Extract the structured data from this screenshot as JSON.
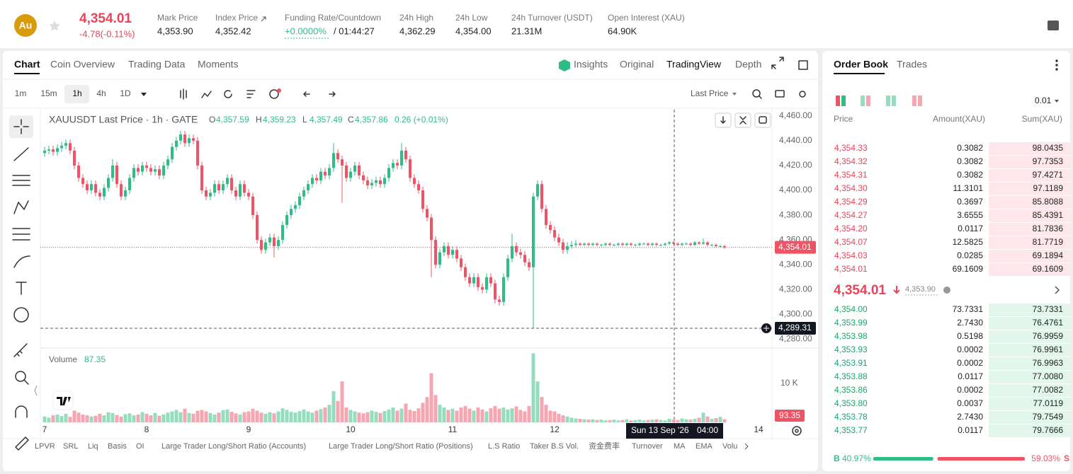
{
  "header": {
    "logo": "Au",
    "price": "4,354.01",
    "change": "-4.78(-0.11%)",
    "stats": [
      {
        "label": "Mark Price",
        "value": "4,353.90"
      },
      {
        "label": "Index Price",
        "value": "4,352.42"
      },
      {
        "label": "Funding Rate/Countdown",
        "value": "+0.0000%",
        "countdown": "/ 01:44:27"
      },
      {
        "label": "24h High",
        "value": "4,362.29"
      },
      {
        "label": "24h Low",
        "value": "4,354.00"
      },
      {
        "label": "24h Turnover (USDT)",
        "value": "21.31M"
      },
      {
        "label": "Open Interest (XAU)",
        "value": "64.90K"
      }
    ]
  },
  "tabs": [
    "Chart",
    "Coin Overview",
    "Trading Data",
    "Moments"
  ],
  "view_tabs": [
    "Insights",
    "Original",
    "TradingView",
    "Depth"
  ],
  "intervals": [
    "1m",
    "15m",
    "1h",
    "4h",
    "1D"
  ],
  "price_source": "Last Price",
  "indicators": [
    "LPVR",
    "SRL",
    "Liq",
    "Basis",
    "OI",
    "Large Trader Long/Short Ratio (Accounts)",
    "Large Trader Long/Short Ratio (Positions)",
    "L.S Ratio",
    "Taker B.S Vol.",
    "资金费率",
    "Turnover",
    "MA",
    "EMA",
    "Volu"
  ],
  "chart_data": {
    "type": "candlestick",
    "title": "XAUUSDT Last Price · 1h · GATE",
    "ohlc": [
      {
        "key": "O",
        "value": "4,357.59"
      },
      {
        "key": "H",
        "value": "4,359.23"
      },
      {
        "key": "L",
        "value": "4,357.49"
      },
      {
        "key": "C",
        "value": "4,357.86"
      }
    ],
    "change": "0.26 (+0.01%)",
    "up_color": "#2ebd85",
    "down_color": "#ef5466",
    "volume_up_color": "#96dcbf",
    "volume_down_color": "#f5a6b1",
    "xlim": [
      0,
      171
    ],
    "xticks": [
      {
        "value": 0,
        "label": "7"
      },
      {
        "value": 24,
        "label": "8"
      },
      {
        "value": 48,
        "label": "9"
      },
      {
        "value": 72,
        "label": "10"
      },
      {
        "value": 96,
        "label": "11"
      },
      {
        "value": 120,
        "label": "12"
      },
      {
        "value": 168,
        "label": "14"
      }
    ],
    "ylim": [
      4274,
      4465
    ],
    "yticks": [
      {
        "value": 4460,
        "label": "4,460.00"
      },
      {
        "value": 4440,
        "label": "4,440.00"
      },
      {
        "value": 4420,
        "label": "4,420.00"
      },
      {
        "value": 4400,
        "label": "4,400.00"
      },
      {
        "value": 4380,
        "label": "4,380.00"
      },
      {
        "value": 4360,
        "label": "4,360.00"
      },
      {
        "value": 4340,
        "label": "4,340.00"
      },
      {
        "value": 4320,
        "label": "4,320.00"
      },
      {
        "value": 4300,
        "label": "4,300.00"
      },
      {
        "value": 4280,
        "label": "4,280.00"
      }
    ],
    "price_tag": "4,354.01",
    "crosshair_price": "4,289.31",
    "crosshair_date": "Sun 13 Sep '26",
    "crosshair_time": "04:00",
    "volume_title": "Volume",
    "volume_value": "87.35",
    "volume_tag": "93.35",
    "vlim": [
      0,
      18500
    ],
    "vticks": [
      {
        "value": 10000,
        "label": "10 K"
      }
    ],
    "candles": [
      [
        4430,
        4435,
        4427,
        4432
      ],
      [
        4432,
        4436,
        4429,
        4433
      ],
      [
        4433,
        4436,
        4428,
        4431
      ],
      [
        4431,
        4437,
        4428,
        4434
      ],
      [
        4434,
        4439,
        4431,
        4436
      ],
      [
        4436,
        4441,
        4433,
        4438
      ],
      [
        4438,
        4441,
        4429,
        4432
      ],
      [
        4432,
        4435,
        4417,
        4420
      ],
      [
        4420,
        4423,
        4407,
        4410
      ],
      [
        4410,
        4413,
        4402,
        4405
      ],
      [
        4405,
        4408,
        4397,
        4400
      ],
      [
        4400,
        4408,
        4397,
        4405
      ],
      [
        4405,
        4408,
        4395,
        4398
      ],
      [
        4398,
        4401,
        4392,
        4395
      ],
      [
        4395,
        4405,
        4392,
        4402
      ],
      [
        4402,
        4413,
        4399,
        4410
      ],
      [
        4410,
        4425,
        4407,
        4420
      ],
      [
        4420,
        4423,
        4402,
        4405
      ],
      [
        4405,
        4408,
        4392,
        4395
      ],
      [
        4395,
        4403,
        4392,
        4400
      ],
      [
        4400,
        4413,
        4397,
        4410
      ],
      [
        4410,
        4421,
        4407,
        4418
      ],
      [
        4418,
        4421,
        4412,
        4415
      ],
      [
        4415,
        4423,
        4412,
        4420
      ],
      [
        4420,
        4423,
        4415,
        4418
      ],
      [
        4418,
        4421,
        4412,
        4415
      ],
      [
        4415,
        4420,
        4412,
        4417
      ],
      [
        4417,
        4420,
        4409,
        4412
      ],
      [
        4412,
        4423,
        4409,
        4420
      ],
      [
        4420,
        4428,
        4417,
        4425
      ],
      [
        4425,
        4438,
        4422,
        4435
      ],
      [
        4435,
        4443,
        4432,
        4440
      ],
      [
        4440,
        4448,
        4437,
        4445
      ],
      [
        4445,
        4448,
        4435,
        4438
      ],
      [
        4438,
        4445,
        4435,
        4442
      ],
      [
        4442,
        4445,
        4437,
        4440
      ],
      [
        4440,
        4443,
        4417,
        4420
      ],
      [
        4420,
        4423,
        4397,
        4400
      ],
      [
        4400,
        4403,
        4392,
        4395
      ],
      [
        4395,
        4401,
        4392,
        4398
      ],
      [
        4398,
        4408,
        4395,
        4405
      ],
      [
        4405,
        4408,
        4397,
        4400
      ],
      [
        4400,
        4408,
        4397,
        4405
      ],
      [
        4405,
        4413,
        4402,
        4410
      ],
      [
        4410,
        4413,
        4397,
        4400
      ],
      [
        4400,
        4403,
        4392,
        4395
      ],
      [
        4395,
        4408,
        4392,
        4405
      ],
      [
        4405,
        4408,
        4395,
        4398
      ],
      [
        4398,
        4401,
        4392,
        4395
      ],
      [
        4395,
        4398,
        4377,
        4380
      ],
      [
        4380,
        4383,
        4357,
        4360
      ],
      [
        4360,
        4363,
        4349,
        4352
      ],
      [
        4352,
        4361,
        4349,
        4358
      ],
      [
        4358,
        4365,
        4355,
        4362
      ],
      [
        4362,
        4365,
        4346,
        4355
      ],
      [
        4355,
        4363,
        4352,
        4360
      ],
      [
        4360,
        4375,
        4357,
        4372
      ],
      [
        4372,
        4383,
        4369,
        4380
      ],
      [
        4380,
        4388,
        4377,
        4385
      ],
      [
        4385,
        4391,
        4382,
        4388
      ],
      [
        4388,
        4398,
        4385,
        4395
      ],
      [
        4395,
        4403,
        4392,
        4400
      ],
      [
        4400,
        4408,
        4397,
        4405
      ],
      [
        4405,
        4413,
        4402,
        4410
      ],
      [
        4410,
        4413,
        4405,
        4408
      ],
      [
        4408,
        4418,
        4405,
        4415
      ],
      [
        4415,
        4418,
        4409,
        4412
      ],
      [
        4412,
        4421,
        4409,
        4418
      ],
      [
        4418,
        4438,
        4415,
        4430
      ],
      [
        4430,
        4433,
        4422,
        4425
      ],
      [
        4425,
        4428,
        4390,
        4420
      ],
      [
        4420,
        4423,
        4407,
        4410
      ],
      [
        4410,
        4418,
        4407,
        4415
      ],
      [
        4415,
        4423,
        4412,
        4420
      ],
      [
        4420,
        4423,
        4409,
        4412
      ],
      [
        4412,
        4415,
        4405,
        4408
      ],
      [
        4408,
        4411,
        4401,
        4404
      ],
      [
        4404,
        4409,
        4401,
        4406
      ],
      [
        4406,
        4411,
        4403,
        4408
      ],
      [
        4408,
        4411,
        4402,
        4405
      ],
      [
        4405,
        4413,
        4402,
        4410
      ],
      [
        4410,
        4421,
        4407,
        4418
      ],
      [
        4418,
        4425,
        4415,
        4422
      ],
      [
        4422,
        4425,
        4417,
        4420
      ],
      [
        4420,
        4438,
        4417,
        4432
      ],
      [
        4432,
        4435,
        4422,
        4425
      ],
      [
        4425,
        4428,
        4407,
        4410
      ],
      [
        4410,
        4413,
        4402,
        4405
      ],
      [
        4405,
        4408,
        4397,
        4400
      ],
      [
        4400,
        4403,
        4382,
        4385
      ],
      [
        4385,
        4388,
        4375,
        4378
      ],
      [
        4378,
        4381,
        4330,
        4360
      ],
      [
        4360,
        4363,
        4337,
        4340
      ],
      [
        4340,
        4353,
        4337,
        4350
      ],
      [
        4350,
        4358,
        4347,
        4355
      ],
      [
        4355,
        4358,
        4345,
        4348
      ],
      [
        4348,
        4355,
        4345,
        4352
      ],
      [
        4352,
        4355,
        4342,
        4345
      ],
      [
        4345,
        4348,
        4335,
        4338
      ],
      [
        4338,
        4341,
        4327,
        4330
      ],
      [
        4330,
        4333,
        4322,
        4325
      ],
      [
        4325,
        4333,
        4322,
        4330
      ],
      [
        4330,
        4333,
        4319,
        4322
      ],
      [
        4322,
        4325,
        4317,
        4320
      ],
      [
        4320,
        4333,
        4317,
        4330
      ],
      [
        4330,
        4333,
        4322,
        4325
      ],
      [
        4325,
        4328,
        4309,
        4312
      ],
      [
        4312,
        4315,
        4307,
        4310
      ],
      [
        4310,
        4333,
        4307,
        4330
      ],
      [
        4330,
        4348,
        4327,
        4345
      ],
      [
        4345,
        4365,
        4342,
        4355
      ],
      [
        4355,
        4358,
        4347,
        4350
      ],
      [
        4350,
        4353,
        4345,
        4348
      ],
      [
        4348,
        4351,
        4339,
        4342
      ],
      [
        4342,
        4345,
        4335,
        4338
      ],
      [
        4338,
        4398,
        4289,
        4395
      ],
      [
        4395,
        4408,
        4392,
        4405
      ],
      [
        4405,
        4408,
        4382,
        4385
      ],
      [
        4385,
        4388,
        4369,
        4372
      ],
      [
        4372,
        4375,
        4365,
        4368
      ],
      [
        4368,
        4371,
        4359,
        4362
      ],
      [
        4362,
        4365,
        4355,
        4358
      ],
      [
        4358,
        4361,
        4349,
        4352
      ],
      [
        4352,
        4358,
        4349,
        4355
      ],
      [
        4355,
        4359,
        4353,
        4356
      ],
      [
        4356,
        4360,
        4354,
        4357
      ],
      [
        4357,
        4358,
        4355,
        4356
      ],
      [
        4356,
        4358,
        4355,
        4357
      ],
      [
        4357,
        4358,
        4355,
        4356
      ],
      [
        4356,
        4358,
        4355,
        4357
      ],
      [
        4357,
        4358,
        4355,
        4356
      ],
      [
        4356,
        4357,
        4355,
        4356
      ],
      [
        4356,
        4358,
        4355,
        4357
      ],
      [
        4357,
        4358,
        4355,
        4356
      ],
      [
        4356,
        4357,
        4355,
        4356
      ],
      [
        4356,
        4358,
        4355,
        4357
      ],
      [
        4357,
        4358,
        4355,
        4356
      ],
      [
        4356,
        4358,
        4355,
        4357
      ],
      [
        4357,
        4358,
        4355,
        4356
      ],
      [
        4356,
        4357,
        4355,
        4356
      ],
      [
        4356,
        4358,
        4355,
        4357
      ],
      [
        4357,
        4358,
        4356,
        4357
      ],
      [
        4357,
        4358,
        4355,
        4356
      ],
      [
        4356,
        4358,
        4355,
        4357
      ],
      [
        4357,
        4358,
        4355,
        4356
      ],
      [
        4356,
        4357,
        4355,
        4356
      ],
      [
        4356,
        4358,
        4355,
        4357
      ],
      [
        4357,
        4359,
        4356,
        4358
      ],
      [
        4358,
        4359,
        4356,
        4357
      ],
      [
        4357,
        4358,
        4355,
        4356
      ],
      [
        4356,
        4358,
        4355,
        4357
      ],
      [
        4357,
        4358,
        4356,
        4357
      ],
      [
        4357,
        4358,
        4355,
        4356
      ],
      [
        4356,
        4359,
        4355,
        4358
      ],
      [
        4358,
        4359,
        4356,
        4357
      ],
      [
        4357,
        4361,
        4356,
        4358
      ],
      [
        4358,
        4359,
        4355,
        4356
      ],
      [
        4356,
        4357,
        4355,
        4356
      ],
      [
        4356,
        4357,
        4354,
        4355
      ],
      [
        4355,
        4356,
        4354,
        4355
      ],
      [
        4355,
        4356,
        4353,
        4354.01
      ]
    ],
    "volume": [
      1500,
      1200,
      1800,
      2000,
      1600,
      2200,
      1400,
      3000,
      2500,
      2000,
      1800,
      1500,
      1700,
      2200,
      1800,
      2600,
      2400,
      1900,
      1500,
      2100,
      2300,
      1800,
      2000,
      2600,
      2200,
      1800,
      2400,
      1700,
      2000,
      2500,
      2800,
      3200,
      2600,
      3500,
      2400,
      2200,
      3000,
      3200,
      2800,
      2400,
      2000,
      2500,
      3100,
      3300,
      2700,
      2300,
      2000,
      2600,
      2800,
      3500,
      3000,
      2500,
      2200,
      2600,
      2300,
      2800,
      3600,
      3200,
      2700,
      2500,
      2900,
      3300,
      2800,
      2500,
      3000,
      3400,
      3800,
      4500,
      8000,
      5500,
      10500,
      3800,
      3200,
      2800,
      2500,
      2300,
      2600,
      3000,
      2700,
      2400,
      2900,
      3300,
      3800,
      3000,
      3500,
      4800,
      3200,
      2900,
      3600,
      5000,
      6500,
      12600,
      7000,
      4500,
      3800,
      3200,
      3500,
      3000,
      3800,
      4200,
      3500,
      3000,
      3800,
      3300,
      2800,
      3600,
      4200,
      3500,
      3800,
      3300,
      3600,
      4100,
      3200,
      2800,
      4200,
      17700,
      10500,
      6500,
      4500,
      3000,
      2800,
      2200,
      1800,
      1500,
      1200,
      1000,
      900,
      800,
      700,
      800,
      600,
      700,
      500,
      600,
      700,
      500,
      600,
      800,
      500,
      600,
      700,
      500,
      600,
      700,
      800,
      600,
      500,
      900,
      700,
      600,
      1000,
      800,
      700,
      900,
      1200,
      2500,
      1500,
      900,
      1100,
      1400,
      800
    ]
  },
  "order_book": {
    "tabs": [
      "Order Book",
      "Trades"
    ],
    "precision": "0.01",
    "headers": [
      "Price",
      "Amount(XAU)",
      "Sum(XAU)"
    ],
    "asks": [
      [
        "4,354.33",
        "0.3082",
        "98.0435"
      ],
      [
        "4,354.32",
        "0.3082",
        "97.7353"
      ],
      [
        "4,354.31",
        "0.3082",
        "97.4271"
      ],
      [
        "4,354.30",
        "11.3101",
        "97.1189"
      ],
      [
        "4,354.29",
        "0.3697",
        "85.8088"
      ],
      [
        "4,354.27",
        "3.6555",
        "85.4391"
      ],
      [
        "4,354.20",
        "0.0117",
        "81.7836"
      ],
      [
        "4,354.07",
        "12.5825",
        "81.7719"
      ],
      [
        "4,354.03",
        "0.0285",
        "69.1894"
      ],
      [
        "4,354.01",
        "69.1609",
        "69.1609"
      ]
    ],
    "last_price": "4,354.01",
    "mark_price": "4,353.90",
    "bids": [
      [
        "4,354.00",
        "73.7331",
        "73.7331"
      ],
      [
        "4,353.99",
        "2.7430",
        "76.4761"
      ],
      [
        "4,353.98",
        "0.5198",
        "76.9959"
      ],
      [
        "4,353.93",
        "0.0002",
        "76.9961"
      ],
      [
        "4,353.91",
        "0.0002",
        "76.9963"
      ],
      [
        "4,353.88",
        "0.0117",
        "77.0080"
      ],
      [
        "4,353.86",
        "0.0002",
        "77.0082"
      ],
      [
        "4,353.80",
        "0.0037",
        "77.0119"
      ],
      [
        "4,353.78",
        "2.7430",
        "79.7549"
      ],
      [
        "4,353.77",
        "0.0117",
        "79.7666"
      ]
    ],
    "buy_key": "B",
    "sell_key": "S",
    "ratio": {
      "values": [
        40.97,
        59.03
      ],
      "value_labels": [
        "40.97%",
        "59.03%"
      ],
      "colors": [
        "#2ebd85",
        "#ef5466"
      ]
    }
  }
}
